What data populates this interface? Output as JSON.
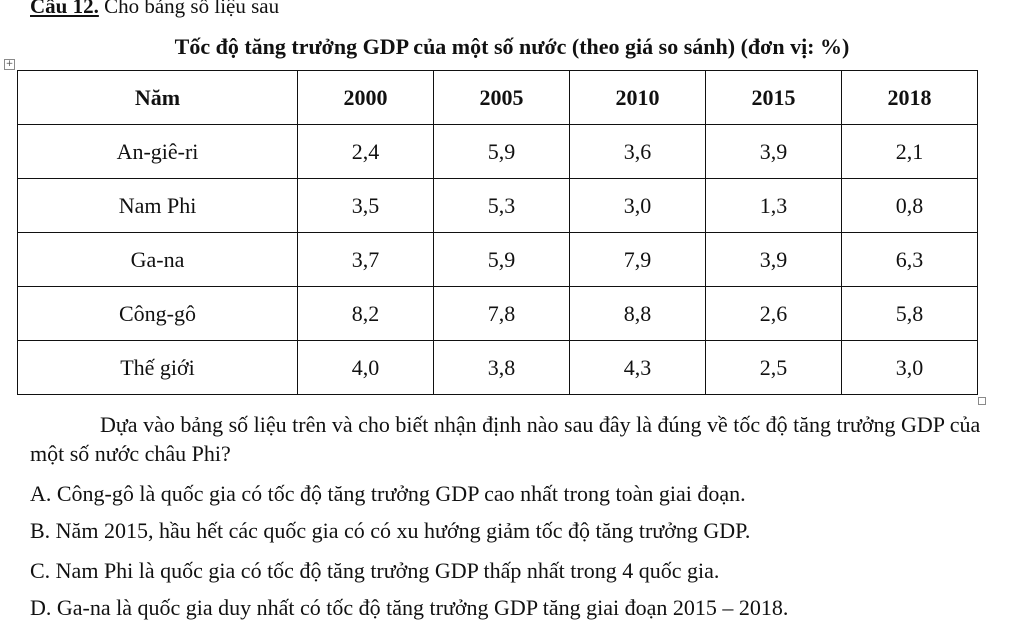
{
  "question": {
    "number": "Câu 12.",
    "intro": "Cho bảng số liệu sau"
  },
  "table": {
    "title": "Tốc độ tăng trưởng GDP của một số nước (theo giá so sánh) (đơn vị: %)",
    "headers": [
      "Năm",
      "2000",
      "2005",
      "2010",
      "2015",
      "2018"
    ],
    "rows": [
      {
        "country": "An-giê-ri",
        "values": [
          "2,4",
          "5,9",
          "3,6",
          "3,9",
          "2,1"
        ]
      },
      {
        "country": "Nam Phi",
        "values": [
          "3,5",
          "5,3",
          "3,0",
          "1,3",
          "0,8"
        ]
      },
      {
        "country": "Ga-na",
        "values": [
          "3,7",
          "5,9",
          "7,9",
          "3,9",
          "6,3"
        ]
      },
      {
        "country": "Công-gô",
        "values": [
          "8,2",
          "7,8",
          "8,8",
          "2,6",
          "5,8"
        ]
      },
      {
        "country": "Thế giới",
        "values": [
          "4,0",
          "3,8",
          "4,3",
          "2,5",
          "3,0"
        ]
      }
    ]
  },
  "prompt": "Dựa vào bảng số liệu trên và cho biết nhận định nào sau đây là đúng về tốc độ tăng trưởng GDP của một số nước châu Phi?",
  "options": {
    "a": "A. Công-gô là quốc gia có tốc độ tăng trưởng GDP cao nhất trong toàn giai đoạn.",
    "b": "B. Năm 2015, hầu hết các quốc gia có có xu hướng giảm tốc độ tăng trưởng GDP.",
    "c": "C. Nam Phi là quốc gia có tốc độ tăng trưởng GDP thấp nhất trong 4 quốc gia.",
    "d": "D. Ga-na là quốc gia duy nhất có tốc độ tăng trưởng GDP tăng giai đoạn 2015 – 2018."
  },
  "icons": {
    "table_move": "table-move-handle-icon",
    "table_resize": "table-resize-handle-icon"
  }
}
